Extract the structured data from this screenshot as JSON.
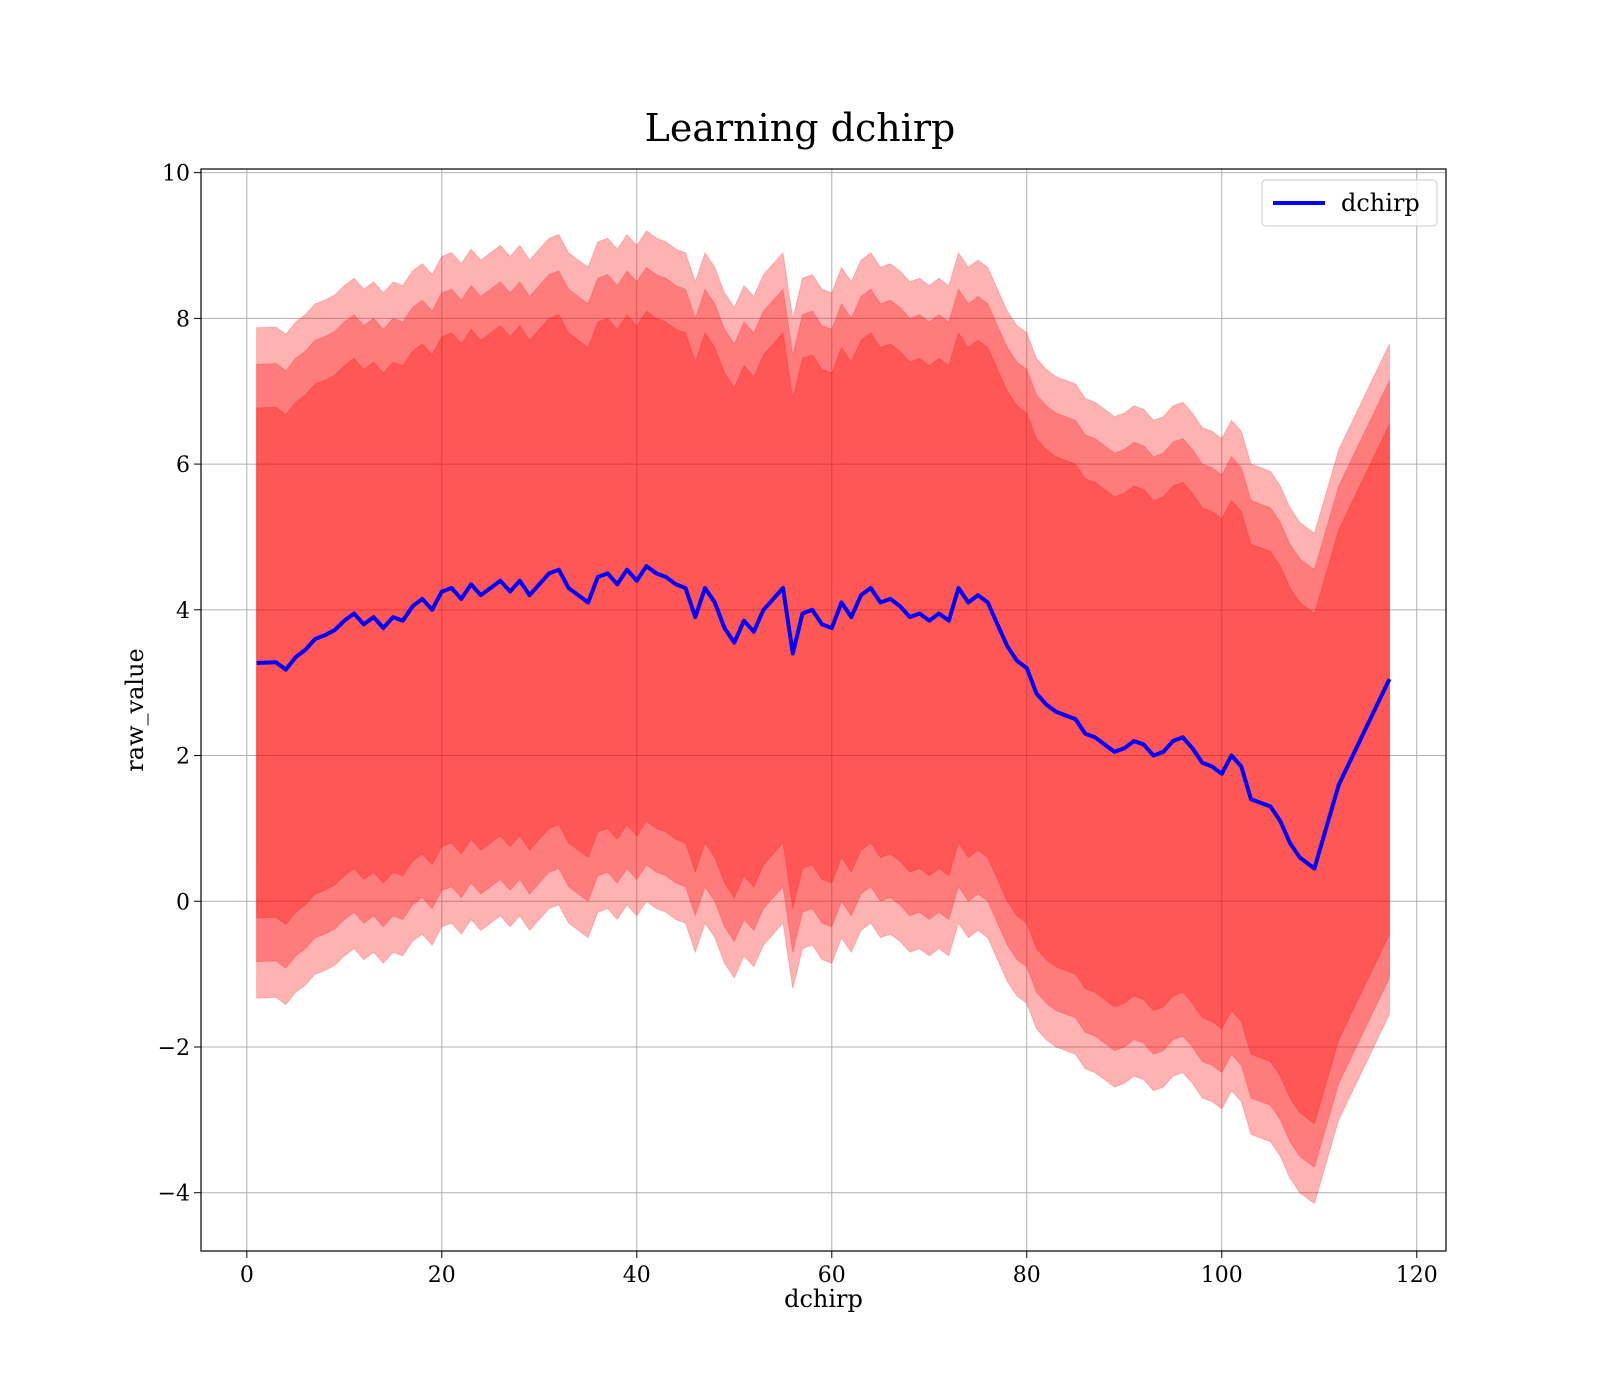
{
  "chart_data": {
    "type": "line",
    "title": "Learning dchirp",
    "xlabel": "dchirp",
    "ylabel": "raw_value",
    "xlim": [
      -4.7,
      123.0
    ],
    "ylim": [
      -4.8,
      10.05
    ],
    "xticks": [
      0,
      20,
      40,
      60,
      80,
      100,
      120
    ],
    "yticks": [
      -4,
      -2,
      0,
      2,
      4,
      6,
      8,
      10
    ],
    "xtick_labels": [
      "0",
      "20",
      "40",
      "60",
      "80",
      "100",
      "120"
    ],
    "ytick_labels": [
      "−4",
      "−2",
      "0",
      "2",
      "4",
      "6",
      "8",
      "10"
    ],
    "grid": true,
    "legend": {
      "position": "top-right",
      "entries": [
        "dchirp"
      ]
    },
    "colors": {
      "line": "#0000ff",
      "band": "#ff0000",
      "grid": "#b0b0b0"
    },
    "band_half_widths": [
      3.5,
      4.1,
      4.6
    ],
    "band_opacity": 0.3,
    "series": [
      {
        "name": "dchirp",
        "x": [
          1,
          3,
          4,
          5,
          6,
          7,
          8,
          9,
          10,
          11,
          12,
          13,
          14,
          15,
          16,
          17,
          18,
          19,
          20,
          21,
          22,
          23,
          24,
          25,
          26,
          27,
          28,
          29,
          30,
          31,
          32,
          33,
          34,
          35,
          36,
          37,
          38,
          39,
          40,
          41,
          42,
          43,
          44,
          45,
          46,
          47,
          48,
          49,
          50,
          51,
          52,
          53,
          54,
          55,
          56,
          57,
          58,
          59,
          60,
          61,
          62,
          63,
          64,
          65,
          66,
          67,
          68,
          69,
          70,
          71,
          72,
          73,
          74,
          75,
          76,
          77,
          78,
          79,
          80,
          81,
          82,
          83,
          84,
          85,
          86,
          87,
          88,
          89,
          90,
          91,
          92,
          93,
          94,
          95,
          96,
          97,
          98,
          99,
          100,
          101,
          102,
          103,
          104,
          105,
          106,
          107,
          108,
          109.5,
          112,
          117.2
        ],
        "y": [
          3.27,
          3.28,
          3.18,
          3.35,
          3.45,
          3.6,
          3.65,
          3.72,
          3.85,
          3.95,
          3.8,
          3.9,
          3.75,
          3.9,
          3.85,
          4.05,
          4.15,
          4.0,
          4.25,
          4.3,
          4.15,
          4.35,
          4.2,
          4.3,
          4.4,
          4.25,
          4.4,
          4.2,
          4.35,
          4.5,
          4.55,
          4.3,
          4.2,
          4.1,
          4.45,
          4.5,
          4.35,
          4.55,
          4.4,
          4.6,
          4.5,
          4.45,
          4.35,
          4.3,
          3.9,
          4.3,
          4.1,
          3.75,
          3.55,
          3.85,
          3.7,
          4.0,
          4.15,
          4.3,
          3.4,
          3.95,
          4.0,
          3.8,
          3.75,
          4.1,
          3.9,
          4.2,
          4.3,
          4.1,
          4.15,
          4.05,
          3.9,
          3.95,
          3.85,
          3.95,
          3.85,
          4.3,
          4.1,
          4.2,
          4.1,
          3.8,
          3.5,
          3.3,
          3.2,
          2.85,
          2.7,
          2.6,
          2.55,
          2.5,
          2.3,
          2.25,
          2.15,
          2.05,
          2.1,
          2.2,
          2.15,
          2.0,
          2.05,
          2.2,
          2.25,
          2.1,
          1.9,
          1.85,
          1.75,
          2.0,
          1.85,
          1.4,
          1.35,
          1.3,
          1.1,
          0.8,
          0.6,
          0.45,
          1.6,
          3.05
        ]
      }
    ]
  }
}
